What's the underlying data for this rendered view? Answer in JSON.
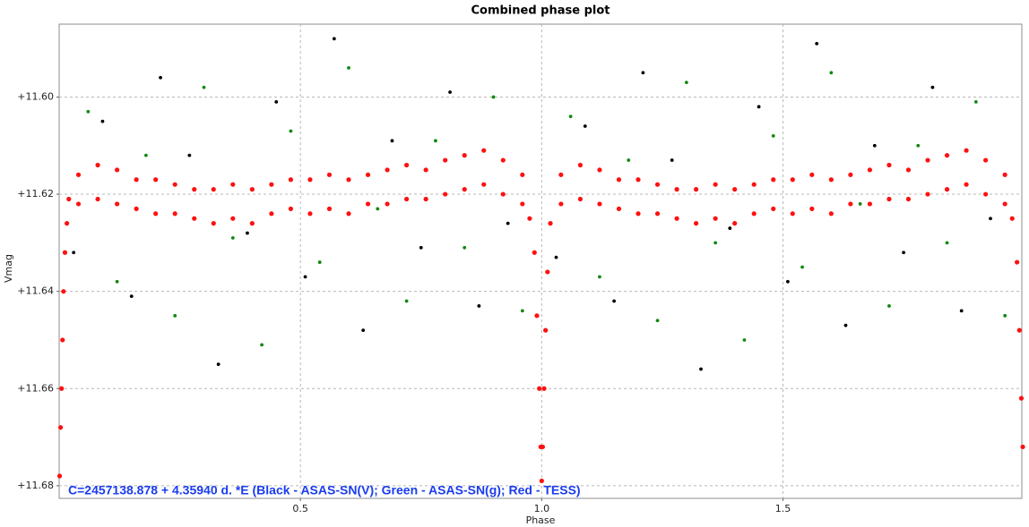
{
  "chart_data": {
    "type": "scatter",
    "title": "Combined phase plot",
    "x_label": "Phase",
    "y_label": "Vmag",
    "annotation": "C=2457138.878 + 4.35940 d. *E (Black - ASAS-SN(V); Green - ASAS-SN(g); Red - TESS)",
    "xlim": [
      0,
      1.995
    ],
    "ylim": [
      11.6826,
      11.585
    ],
    "grid": true,
    "xticks": [
      0.5,
      {
        "value": 1.0,
        "label": "1.0"
      },
      1.5
    ],
    "yticks": [
      {
        "value": 11.6,
        "label": "+11.60"
      },
      {
        "value": 11.62,
        "label": "+11.62"
      },
      {
        "value": 11.64,
        "label": "+11.64"
      },
      {
        "value": 11.66,
        "label": "+11.66"
      },
      {
        "value": 11.68,
        "label": "+11.68"
      }
    ],
    "series": [
      {
        "color": "#000000",
        "x": [
          0.03,
          0.09,
          0.15,
          0.21,
          0.27,
          0.33,
          0.39,
          0.45,
          0.51,
          0.57,
          0.63,
          0.69,
          0.75,
          0.81,
          0.87,
          0.93,
          1.03,
          1.09,
          1.15,
          1.21,
          1.27,
          1.33,
          1.39,
          1.45,
          1.51,
          1.57,
          1.63,
          1.69,
          1.75,
          1.81,
          1.87,
          1.93
        ],
        "values": [
          11.632,
          11.605,
          11.641,
          11.596,
          11.612,
          11.655,
          11.628,
          11.601,
          11.637,
          11.588,
          11.648,
          11.609,
          11.631,
          11.599,
          11.643,
          11.626,
          11.633,
          11.606,
          11.642,
          11.595,
          11.613,
          11.656,
          11.627,
          11.602,
          11.638,
          11.589,
          11.647,
          11.61,
          11.632,
          11.598,
          11.644,
          11.625
        ]
      },
      {
        "color": "#118811",
        "x": [
          0.06,
          0.12,
          0.18,
          0.24,
          0.3,
          0.36,
          0.42,
          0.48,
          0.54,
          0.6,
          0.66,
          0.72,
          0.78,
          0.84,
          0.9,
          0.96,
          1.06,
          1.12,
          1.18,
          1.24,
          1.3,
          1.36,
          1.42,
          1.48,
          1.54,
          1.6,
          1.66,
          1.72,
          1.78,
          1.84,
          1.9,
          1.96
        ],
        "values": [
          11.603,
          11.638,
          11.612,
          11.645,
          11.598,
          11.629,
          11.651,
          11.607,
          11.634,
          11.594,
          11.623,
          11.642,
          11.609,
          11.631,
          11.6,
          11.644,
          11.604,
          11.637,
          11.613,
          11.646,
          11.597,
          11.63,
          11.65,
          11.608,
          11.635,
          11.595,
          11.622,
          11.643,
          11.61,
          11.63,
          11.601,
          11.645
        ]
      },
      {
        "color": "#ff1010",
        "x": [
          0.001,
          0.003,
          0.005,
          0.007,
          0.009,
          0.012,
          0.016,
          0.02,
          0.04,
          0.04,
          0.08,
          0.08,
          0.12,
          0.12,
          0.16,
          0.16,
          0.2,
          0.2,
          0.24,
          0.24,
          0.28,
          0.28,
          0.32,
          0.32,
          0.36,
          0.36,
          0.4,
          0.4,
          0.44,
          0.44,
          0.48,
          0.48,
          0.52,
          0.52,
          0.56,
          0.56,
          0.6,
          0.6,
          0.64,
          0.64,
          0.68,
          0.68,
          0.72,
          0.72,
          0.76,
          0.76,
          0.8,
          0.8,
          0.84,
          0.84,
          0.88,
          0.88,
          0.92,
          0.92,
          0.96,
          0.96,
          0.975,
          0.985,
          0.99,
          0.995,
          0.998,
          1.0,
          1.002,
          1.005,
          1.008,
          1.012,
          1.018,
          1.04,
          1.04,
          1.08,
          1.08,
          1.12,
          1.12,
          1.16,
          1.16,
          1.2,
          1.2,
          1.24,
          1.24,
          1.28,
          1.28,
          1.32,
          1.32,
          1.36,
          1.36,
          1.4,
          1.4,
          1.44,
          1.44,
          1.48,
          1.48,
          1.52,
          1.52,
          1.56,
          1.56,
          1.6,
          1.6,
          1.64,
          1.64,
          1.68,
          1.68,
          1.72,
          1.72,
          1.76,
          1.76,
          1.8,
          1.8,
          1.84,
          1.84,
          1.88,
          1.88,
          1.92,
          1.92,
          1.96,
          1.96,
          1.975,
          1.985,
          1.99,
          1.994,
          1.997
        ],
        "values": [
          11.678,
          11.668,
          11.66,
          11.65,
          11.64,
          11.632,
          11.626,
          11.621,
          11.616,
          11.622,
          11.614,
          11.621,
          11.615,
          11.622,
          11.617,
          11.623,
          11.617,
          11.624,
          11.618,
          11.624,
          11.619,
          11.625,
          11.619,
          11.626,
          11.618,
          11.625,
          11.619,
          11.626,
          11.618,
          11.624,
          11.617,
          11.623,
          11.617,
          11.624,
          11.616,
          11.623,
          11.617,
          11.624,
          11.616,
          11.622,
          11.615,
          11.622,
          11.614,
          11.621,
          11.615,
          11.621,
          11.613,
          11.62,
          11.612,
          11.619,
          11.611,
          11.618,
          11.613,
          11.62,
          11.616,
          11.622,
          11.625,
          11.632,
          11.645,
          11.66,
          11.672,
          11.679,
          11.672,
          11.66,
          11.648,
          11.636,
          11.626,
          11.616,
          11.622,
          11.614,
          11.621,
          11.615,
          11.622,
          11.617,
          11.623,
          11.617,
          11.624,
          11.618,
          11.624,
          11.619,
          11.625,
          11.619,
          11.626,
          11.618,
          11.625,
          11.619,
          11.626,
          11.618,
          11.624,
          11.617,
          11.623,
          11.617,
          11.624,
          11.616,
          11.623,
          11.617,
          11.624,
          11.616,
          11.622,
          11.615,
          11.622,
          11.614,
          11.621,
          11.615,
          11.621,
          11.613,
          11.62,
          11.612,
          11.619,
          11.611,
          11.618,
          11.613,
          11.62,
          11.616,
          11.622,
          11.625,
          11.634,
          11.648,
          11.662,
          11.672
        ]
      }
    ]
  }
}
